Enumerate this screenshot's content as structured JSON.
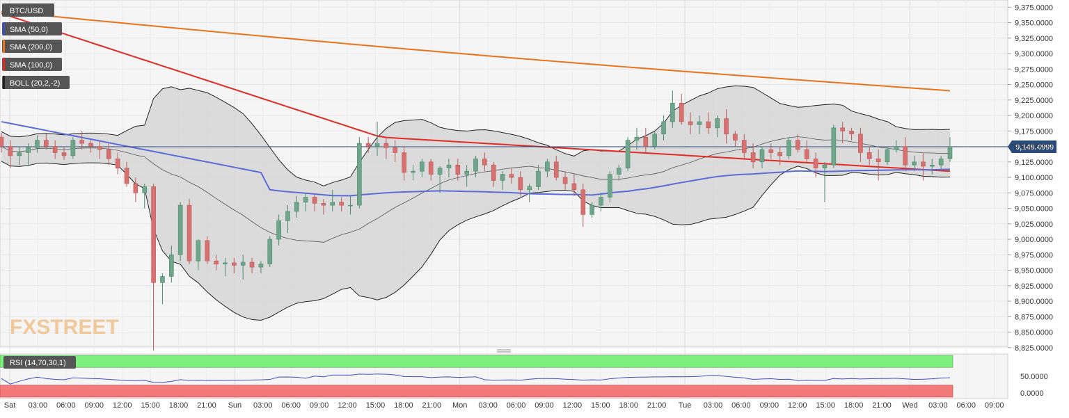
{
  "chart_data": {
    "type": "candlestick",
    "symbol": "BTC/USD",
    "indicators": [
      {
        "label": "SMA (50,0)",
        "color": "#5b6bd8"
      },
      {
        "label": "SMA (200,0)",
        "color": "#e8731a"
      },
      {
        "label": "SMA (100,0)",
        "color": "#e02a24"
      },
      {
        "label": "BOLL (20,2,-2)",
        "color": "#222222"
      }
    ],
    "ylim": [
      8815,
      9380
    ],
    "y_ticks": [
      "9,375.0000",
      "9,350.0000",
      "9,325.0000",
      "9,300.0000",
      "9,275.0000",
      "9,250.0000",
      "9,225.0000",
      "9,200.0000",
      "9,175.0000",
      "9,150.0000",
      "9,125.0000",
      "9,100.0000",
      "9,075.0000",
      "9,050.0000",
      "9,025.0000",
      "9,000.0000",
      "8,975.0000",
      "8,950.0000",
      "8,925.0000",
      "8,900.0000",
      "8,875.0000",
      "8,850.0000",
      "8,825.0000"
    ],
    "current_price": "9,149.4999",
    "x_ticks": [
      "Sat",
      "03:00",
      "06:00",
      "09:00",
      "12:00",
      "15:00",
      "18:00",
      "21:00",
      "Sun",
      "03:00",
      "06:00",
      "09:00",
      "12:00",
      "15:00",
      "18:00",
      "21:00",
      "Mon",
      "03:00",
      "06:00",
      "09:00",
      "12:00",
      "15:00",
      "18:00",
      "21:00",
      "Tue",
      "03:00",
      "06:00",
      "09:00",
      "12:00",
      "15:00",
      "18:00",
      "21:00",
      "Wed",
      "03:00",
      "06:00",
      "09:00"
    ],
    "watermark": "FXSTREET",
    "candles_hourly_ohlc": [
      [
        9165,
        9172,
        9140,
        9150
      ],
      [
        9150,
        9160,
        9115,
        9135
      ],
      [
        9135,
        9150,
        9120,
        9140
      ],
      [
        9140,
        9155,
        9120,
        9148
      ],
      [
        9148,
        9168,
        9140,
        9160
      ],
      [
        9160,
        9170,
        9145,
        9150
      ],
      [
        9150,
        9160,
        9130,
        9140
      ],
      [
        9140,
        9150,
        9128,
        9135
      ],
      [
        9135,
        9165,
        9130,
        9160
      ],
      [
        9160,
        9175,
        9145,
        9155
      ],
      [
        9155,
        9160,
        9140,
        9150
      ],
      [
        9150,
        9158,
        9130,
        9145
      ],
      [
        9145,
        9155,
        9120,
        9130
      ],
      [
        9130,
        9140,
        9105,
        9115
      ],
      [
        9115,
        9125,
        9085,
        9090
      ],
      [
        9090,
        9100,
        9060,
        9075
      ],
      [
        9075,
        9090,
        9050,
        9085
      ],
      [
        9085,
        9090,
        8820,
        8930
      ],
      [
        8930,
        8945,
        8895,
        8940
      ],
      [
        8940,
        8990,
        8930,
        8975
      ],
      [
        8975,
        9060,
        8965,
        9055
      ],
      [
        9055,
        9065,
        8960,
        8965
      ],
      [
        8965,
        9000,
        8950,
        8998
      ],
      [
        8998,
        9005,
        8960,
        8965
      ],
      [
        8965,
        8975,
        8950,
        8960
      ],
      [
        8960,
        8970,
        8940,
        8962
      ],
      [
        8962,
        8970,
        8945,
        8958
      ],
      [
        8958,
        8975,
        8935,
        8963
      ],
      [
        8963,
        8970,
        8945,
        8955
      ],
      [
        8955,
        8965,
        8945,
        8960
      ],
      [
        8960,
        9005,
        8955,
        9000
      ],
      [
        9000,
        9040,
        8990,
        9030
      ],
      [
        9030,
        9055,
        9010,
        9045
      ],
      [
        9045,
        9070,
        9035,
        9060
      ],
      [
        9060,
        9075,
        9045,
        9068
      ],
      [
        9068,
        9072,
        9045,
        9058
      ],
      [
        9058,
        9065,
        9040,
        9055
      ],
      [
        9055,
        9080,
        9045,
        9060
      ],
      [
        9060,
        9068,
        9045,
        9055
      ],
      [
        9055,
        9070,
        9040,
        9055
      ],
      [
        9055,
        9165,
        9050,
        9155
      ],
      [
        9155,
        9165,
        9140,
        9150
      ],
      [
        9150,
        9190,
        9135,
        9155
      ],
      [
        9155,
        9165,
        9130,
        9148
      ],
      [
        9148,
        9160,
        9125,
        9140
      ],
      [
        9140,
        9150,
        9095,
        9108
      ],
      [
        9108,
        9120,
        9095,
        9110
      ],
      [
        9110,
        9130,
        9100,
        9125
      ],
      [
        9125,
        9130,
        9095,
        9105
      ],
      [
        9105,
        9118,
        9075,
        9115
      ],
      [
        9115,
        9130,
        9100,
        9120
      ],
      [
        9120,
        9130,
        9095,
        9105
      ],
      [
        9105,
        9120,
        9085,
        9110
      ],
      [
        9110,
        9135,
        9100,
        9130
      ],
      [
        9130,
        9140,
        9110,
        9120
      ],
      [
        9120,
        9125,
        9085,
        9095
      ],
      [
        9095,
        9110,
        9080,
        9105
      ],
      [
        9105,
        9115,
        9090,
        9100
      ],
      [
        9100,
        9110,
        9070,
        9080
      ],
      [
        9080,
        9090,
        9060,
        9085
      ],
      [
        9085,
        9120,
        9080,
        9110
      ],
      [
        9110,
        9130,
        9100,
        9125
      ],
      [
        9125,
        9135,
        9095,
        9100
      ],
      [
        9100,
        9110,
        9080,
        9090
      ],
      [
        9090,
        9105,
        9070,
        9080
      ],
      [
        9080,
        9090,
        9020,
        9040
      ],
      [
        9040,
        9060,
        9035,
        9055
      ],
      [
        9055,
        9075,
        9045,
        9068
      ],
      [
        9068,
        9110,
        9060,
        9105
      ],
      [
        9105,
        9120,
        9095,
        9115
      ],
      [
        9115,
        9165,
        9110,
        9160
      ],
      [
        9160,
        9180,
        9145,
        9165
      ],
      [
        9165,
        9180,
        9140,
        9150
      ],
      [
        9150,
        9175,
        9145,
        9170
      ],
      [
        9170,
        9200,
        9160,
        9190
      ],
      [
        9190,
        9240,
        9180,
        9220
      ],
      [
        9220,
        9235,
        9185,
        9190
      ],
      [
        9190,
        9205,
        9170,
        9185
      ],
      [
        9185,
        9200,
        9170,
        9190
      ],
      [
        9190,
        9205,
        9170,
        9180
      ],
      [
        9180,
        9200,
        9165,
        9195
      ],
      [
        9195,
        9210,
        9155,
        9170
      ],
      [
        9170,
        9175,
        9150,
        9160
      ],
      [
        9160,
        9170,
        9130,
        9140
      ],
      [
        9140,
        9155,
        9115,
        9125
      ],
      [
        9125,
        9150,
        9115,
        9145
      ],
      [
        9145,
        9155,
        9130,
        9140
      ],
      [
        9140,
        9150,
        9120,
        9135
      ],
      [
        9135,
        9165,
        9130,
        9160
      ],
      [
        9160,
        9170,
        9140,
        9145
      ],
      [
        9145,
        9160,
        9125,
        9130
      ],
      [
        9130,
        9140,
        9100,
        9115
      ],
      [
        9115,
        9125,
        9060,
        9120
      ],
      [
        9120,
        9185,
        9115,
        9180
      ],
      [
        9180,
        9190,
        9155,
        9175
      ],
      [
        9175,
        9180,
        9160,
        9170
      ],
      [
        9170,
        9180,
        9125,
        9140
      ],
      [
        9140,
        9150,
        9120,
        9130
      ],
      [
        9130,
        9145,
        9095,
        9125
      ],
      [
        9125,
        9150,
        9120,
        9145
      ],
      [
        9145,
        9160,
        9140,
        9150
      ],
      [
        9150,
        9165,
        9110,
        9120
      ],
      [
        9120,
        9135,
        9110,
        9125
      ],
      [
        9125,
        9140,
        9095,
        9118
      ],
      [
        9118,
        9130,
        9105,
        9120
      ],
      [
        9120,
        9135,
        9110,
        9130
      ],
      [
        9130,
        9165,
        9125,
        9150
      ]
    ],
    "rsi": {
      "label": "RSI (14,70,30,1)",
      "ticks": [
        "50.0000",
        "0.0000"
      ],
      "overbought": 70,
      "oversold": 30,
      "current": 52
    }
  }
}
